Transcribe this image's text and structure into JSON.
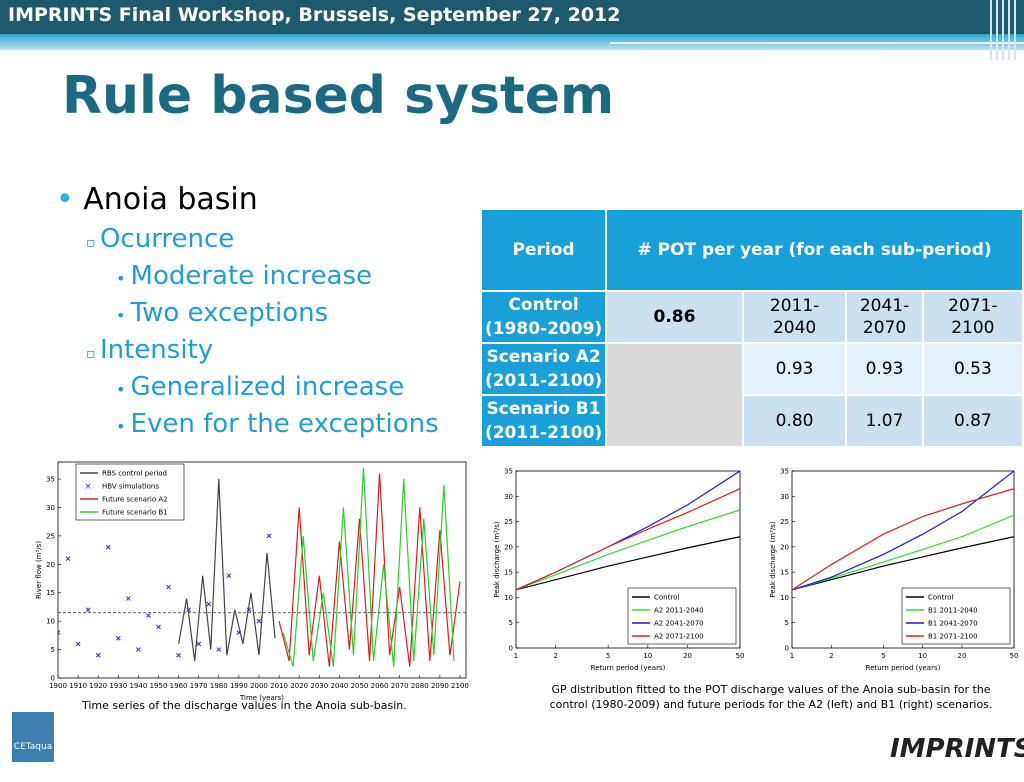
{
  "header": {
    "title": "IMPRINTS Final Workshop, Brussels, September 27, 2012"
  },
  "slide_title": "Rule based system",
  "bullets": {
    "text": "Anoia basin",
    "children": [
      {
        "text": "Ocurrence",
        "children": [
          "Moderate increase",
          "Two exceptions"
        ]
      },
      {
        "text": "Intensity",
        "children": [
          "Generalized increase",
          "Even for the exceptions"
        ]
      }
    ]
  },
  "table": {
    "header": [
      "Period",
      "# POT per year (for each sub-period)"
    ],
    "rows": [
      [
        "Control (1980-2009)",
        "0.86",
        "2011-2040",
        "2041-2070",
        "2071-2100"
      ],
      [
        "Scenario A2 (2011-2100)",
        "0.93",
        "0.93",
        "0.53"
      ],
      [
        "Scenario B1 (2011-2100)",
        "0.80",
        "1.07",
        "0.87"
      ]
    ]
  },
  "captions": {
    "left": "Time series of the discharge values in the Anoia sub-basin.",
    "right": "GP distribution fitted to the POT discharge values of the Anoia sub-basin for the control (1980-2009) and future periods for the A2 (left) and B1 (right) scenarios."
  },
  "logos": {
    "left": "CETaqua",
    "right": "IMPRINTS"
  },
  "chart_data": [
    {
      "type": "line",
      "xlabel": "Time (years)",
      "ylabel": "River flow (m³/s)",
      "xlim": [
        1900,
        2103
      ],
      "ylim": [
        0,
        38
      ],
      "xticks": [
        1900,
        1910,
        1920,
        1930,
        1940,
        1950,
        1960,
        1970,
        1980,
        1990,
        2000,
        2010,
        2020,
        2030,
        2040,
        2050,
        2060,
        2070,
        2080,
        2090,
        2100
      ],
      "yticks": [
        0,
        5,
        10,
        15,
        20,
        25,
        30,
        35
      ],
      "hline": 11.5,
      "legend": "upper left",
      "series": [
        {
          "name": "RBS control period",
          "color": "#444444",
          "x": [
            1960,
            1964,
            1968,
            1972,
            1976,
            1980,
            1984,
            1988,
            1992,
            1996,
            2000,
            2004,
            2008
          ],
          "values": [
            6,
            14,
            3,
            18,
            5,
            35,
            4,
            12,
            6,
            15,
            4,
            22,
            7
          ]
        },
        {
          "name": "HBV simulations",
          "color": "#1f2fe0",
          "marker": "x",
          "x": [
            1900,
            1905,
            1910,
            1915,
            1920,
            1925,
            1930,
            1935,
            1940,
            1945,
            1950,
            1955,
            1960,
            1965,
            1970,
            1975,
            1980,
            1985,
            1990,
            1995,
            2000,
            2005
          ],
          "values": [
            8,
            21,
            6,
            12,
            4,
            23,
            7,
            14,
            5,
            11,
            9,
            16,
            4,
            12,
            6,
            13,
            5,
            18,
            8,
            12,
            10,
            25
          ]
        },
        {
          "name": "Future scenario A2",
          "color": "#d62020",
          "x": [
            2010,
            2015,
            2020,
            2025,
            2030,
            2035,
            2040,
            2045,
            2050,
            2055,
            2060,
            2065,
            2070,
            2075,
            2080,
            2085,
            2090,
            2095,
            2100
          ],
          "values": [
            10,
            3,
            30,
            4,
            18,
            2,
            24,
            5,
            28,
            3,
            36,
            4,
            16,
            2,
            30,
            3,
            26,
            4,
            17
          ]
        },
        {
          "name": "Future scenario B1",
          "color": "#2ecc2e",
          "x": [
            2012,
            2017,
            2022,
            2027,
            2032,
            2037,
            2042,
            2047,
            2052,
            2057,
            2062,
            2067,
            2072,
            2077,
            2082,
            2087,
            2092,
            2097
          ],
          "values": [
            8,
            2,
            25,
            3,
            15,
            2,
            30,
            4,
            37,
            3,
            20,
            2,
            35,
            3,
            28,
            4,
            34,
            3
          ]
        }
      ]
    },
    {
      "type": "line",
      "xlabel": "Return period (years)",
      "ylabel": "Peak discharge (m³/s)",
      "xscale": "log",
      "xlim": [
        1,
        50
      ],
      "ylim": [
        0,
        35
      ],
      "xticks": [
        1,
        2,
        5,
        10,
        20,
        50
      ],
      "yticks": [
        0,
        5,
        10,
        15,
        20,
        25,
        30,
        35
      ],
      "legend": "lower right",
      "series": [
        {
          "name": "Control",
          "color": "#000000",
          "x": [
            1,
            2,
            5,
            10,
            20,
            50
          ],
          "values": [
            11.5,
            13.5,
            16.2,
            18,
            19.8,
            22
          ]
        },
        {
          "name": "A2 2011-2040",
          "color": "#33dd33",
          "x": [
            1,
            2,
            5,
            10,
            20,
            50
          ],
          "values": [
            11.5,
            14.5,
            18.5,
            21.3,
            24,
            27.3
          ]
        },
        {
          "name": "A2 2041-2070",
          "color": "#1a1ae0",
          "x": [
            1,
            2,
            5,
            10,
            20,
            50
          ],
          "values": [
            11.5,
            15,
            20,
            24,
            28.3,
            35
          ]
        },
        {
          "name": "A2 2071-2100",
          "color": "#dd2020",
          "x": [
            1,
            2,
            5,
            10,
            20,
            50
          ],
          "values": [
            11.5,
            15,
            20,
            23.5,
            26.8,
            31.5
          ]
        }
      ]
    },
    {
      "type": "line",
      "xlabel": "Return period (years)",
      "ylabel": "Peak discharge (m³/s)",
      "xscale": "log",
      "xlim": [
        1,
        50
      ],
      "ylim": [
        0,
        35
      ],
      "xticks": [
        1,
        2,
        5,
        10,
        20,
        50
      ],
      "yticks": [
        0,
        5,
        10,
        15,
        20,
        25,
        30,
        35
      ],
      "legend": "lower right",
      "series": [
        {
          "name": "Control",
          "color": "#000000",
          "x": [
            1,
            2,
            5,
            10,
            20,
            50
          ],
          "values": [
            11.5,
            13.5,
            16.2,
            18,
            19.8,
            22
          ]
        },
        {
          "name": "B1 2011-2040",
          "color": "#33dd33",
          "x": [
            1,
            2,
            5,
            10,
            20,
            50
          ],
          "values": [
            11.5,
            13.8,
            17,
            19.5,
            22,
            26.3
          ]
        },
        {
          "name": "B1 2041-2070",
          "color": "#1a1ae0",
          "x": [
            1,
            2,
            5,
            10,
            20,
            50
          ],
          "values": [
            11.5,
            14,
            18.5,
            22.5,
            27,
            35
          ]
        },
        {
          "name": "B1 2071-2100",
          "color": "#dd2020",
          "x": [
            1,
            2,
            5,
            10,
            20,
            50
          ],
          "values": [
            11.5,
            16.5,
            22.5,
            26,
            28.5,
            31.5
          ]
        }
      ]
    }
  ]
}
